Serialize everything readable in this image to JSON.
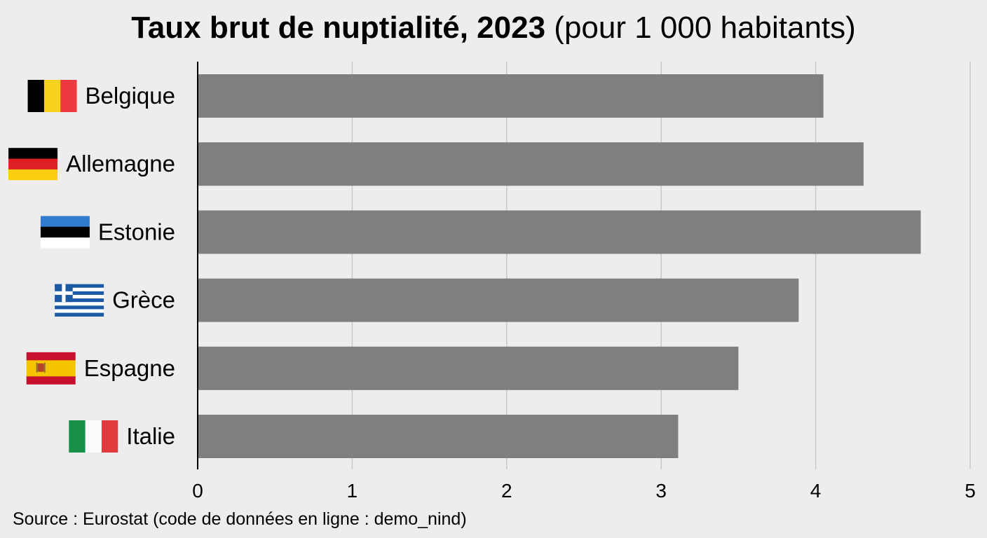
{
  "title": {
    "main": "Taux brut de nuptialité, 2023",
    "unit": "(pour 1 000 habitants)"
  },
  "source": "Source : Eurostat (code de données en ligne : demo_nind)",
  "colors": {
    "background": "#ededed",
    "bar": "#7f7f7f",
    "grid": "#c8c8c8",
    "axis": "#000000"
  },
  "chart_data": {
    "type": "bar",
    "orientation": "horizontal",
    "title": "Taux brut de nuptialité, 2023 (pour 1 000 habitants)",
    "xlabel": "",
    "ylabel": "",
    "categories": [
      "Belgique",
      "Allemagne",
      "Estonie",
      "Grèce",
      "Espagne",
      "Italie"
    ],
    "flags": [
      "flag-belgium",
      "flag-germany",
      "flag-estonia",
      "flag-greece",
      "flag-spain",
      "flag-italy"
    ],
    "values": [
      4.05,
      4.31,
      4.68,
      3.89,
      3.5,
      3.11
    ],
    "xlim": [
      0,
      5
    ],
    "xticks": [
      0,
      1,
      2,
      3,
      4,
      5
    ],
    "xtick_labels": [
      "0",
      "1",
      "2",
      "3",
      "4",
      "5"
    ],
    "grid": true,
    "legend": "none"
  }
}
